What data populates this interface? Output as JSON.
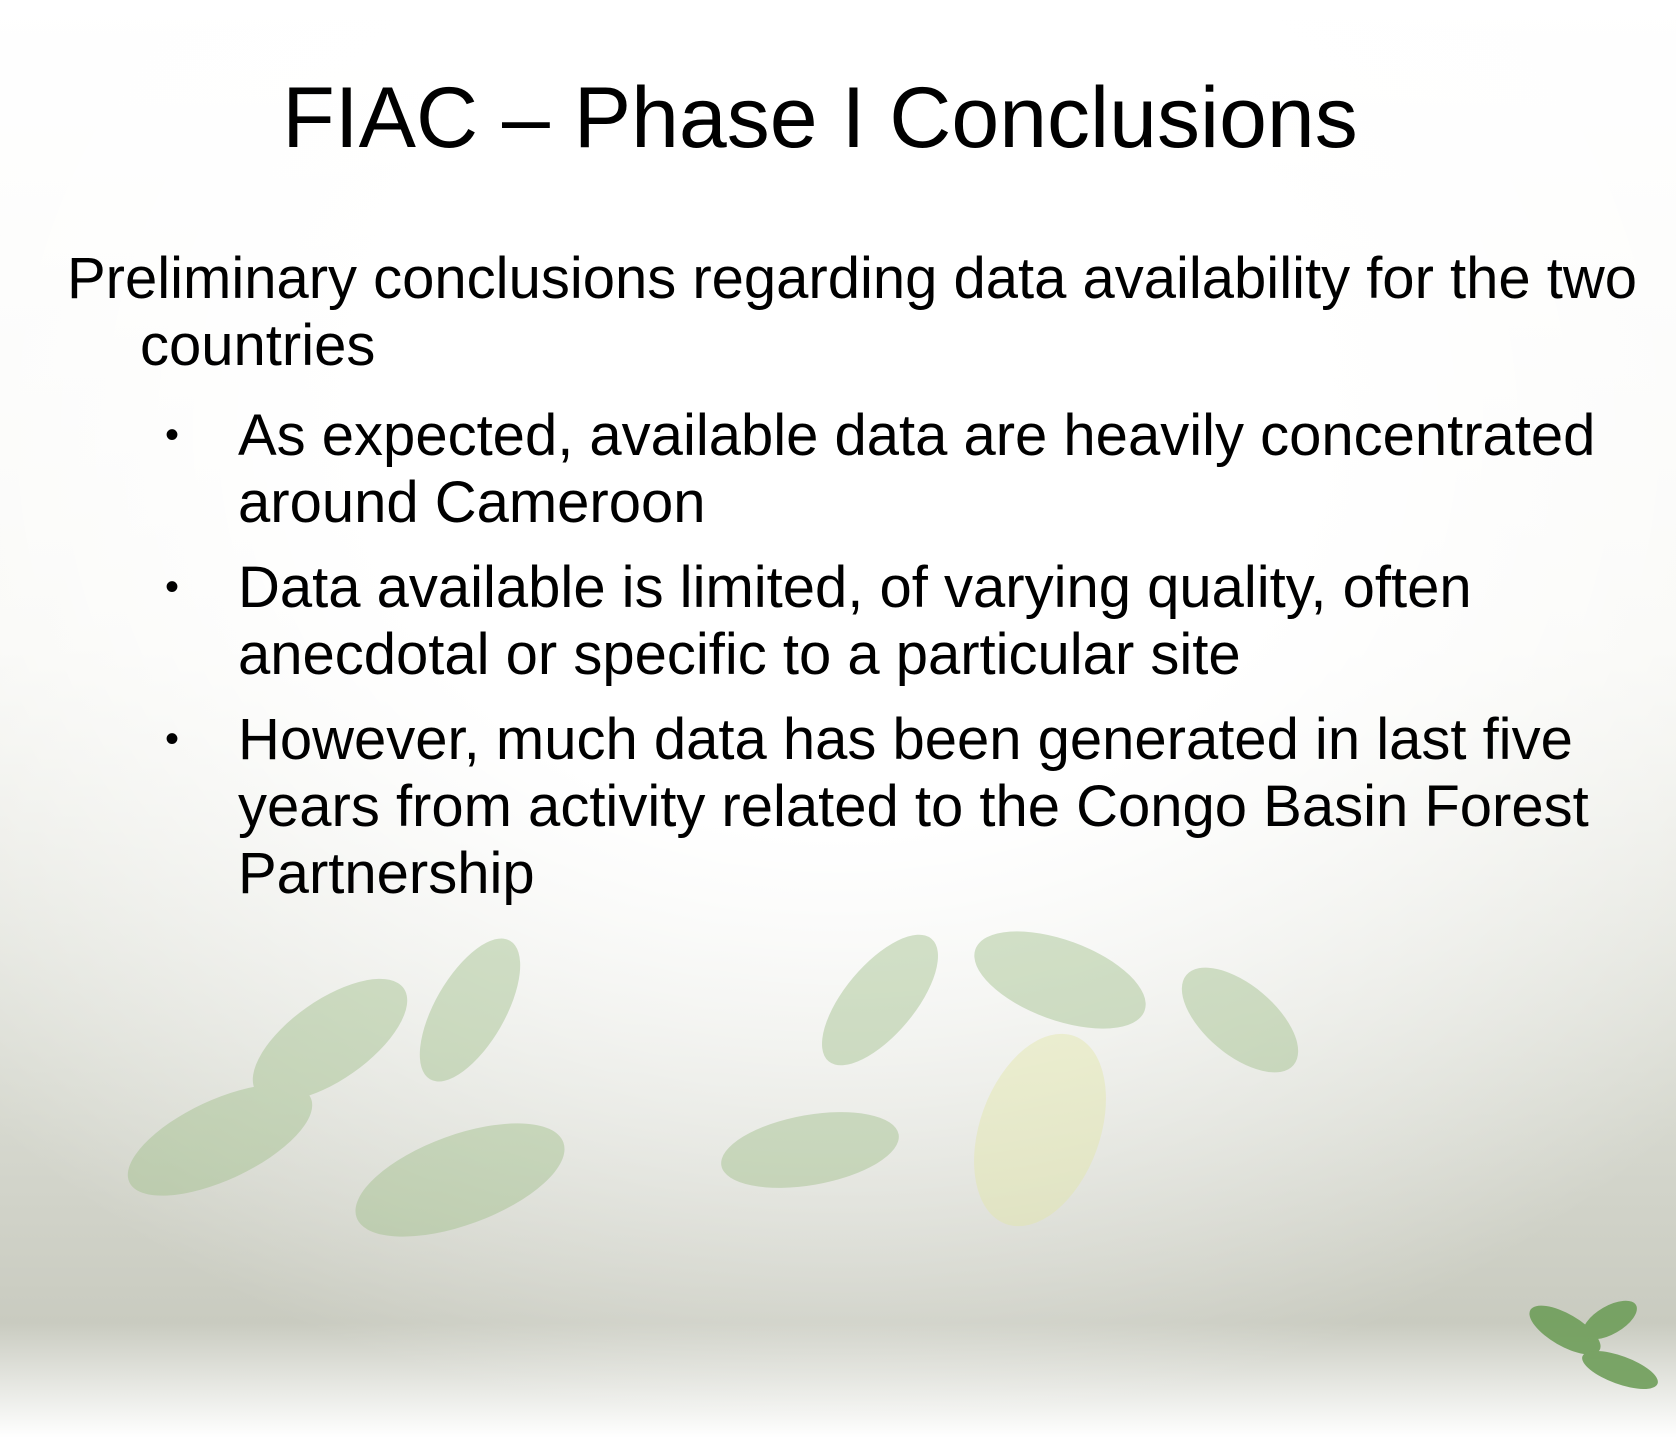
{
  "title": "FIAC – Phase I Conclusions",
  "intro": "Preliminary conclusions regarding data availability for the two countries",
  "bullets": [
    "As expected, available data are heavily concentrated around Cameroon",
    "Data available is limited, of varying quality, often anecdotal or specific to a particular site",
    "However, much data has been generated in last five years from activity related to the Congo Basin Forest Partnership"
  ]
}
